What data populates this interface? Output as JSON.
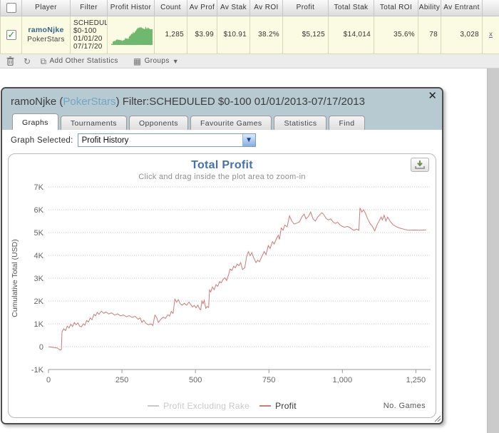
{
  "table": {
    "headers": [
      "",
      "Player",
      "Filter",
      "Profit Histor",
      "Count",
      "Av Prof",
      "Av Stak",
      "Av ROI",
      "Profit",
      "Total Stak",
      "Total ROI",
      "Ability",
      "Av Entrant",
      ""
    ],
    "row": {
      "player_name": "ramoNjke",
      "site": "PokerStars",
      "filter_lines": [
        "SCHEDUL",
        "$0-100",
        "01/01/20",
        "07/17/20"
      ],
      "count": "1,285",
      "av_profit": "$3.99",
      "av_stake": "$10.91",
      "av_roi": "38.2%",
      "profit": "$5,125",
      "total_stake": "$14,014",
      "total_roi": "35.6%",
      "ability": "78",
      "av_entrants": "3,028",
      "remove_label": "x"
    },
    "row_bg": "#fbfae2",
    "sparkline_color": "#6fb96f"
  },
  "toolbar": {
    "add_other_statistics": "Add Other Statistics",
    "groups": "Groups",
    "trash_glyph": "",
    "refresh_glyph": "↻",
    "copy_glyph": "⧉",
    "grid_glyph": "▦",
    "caret_glyph": "▼"
  },
  "dialog": {
    "title_prefix": "ramoNjke (",
    "title_site": "PokerStars",
    "title_suffix": ") Filter:SCHEDULED $0-100 01/01/2013-07/17/2013",
    "close_glyph": "✕",
    "tabs": [
      {
        "label": "Graphs",
        "active": true
      },
      {
        "label": "Tournaments",
        "active": false
      },
      {
        "label": "Opponents",
        "active": false
      },
      {
        "label": "Favourite Games",
        "active": false
      },
      {
        "label": "Statistics",
        "active": false
      },
      {
        "label": "Find",
        "active": false
      }
    ],
    "graph_selected_label": "Graph Selected:",
    "graph_selected_value": "Profit History",
    "select_arrow_glyph": "▼"
  },
  "chart_data": {
    "type": "line",
    "title": "Total Profit",
    "subtitle": "Click and drag inside the plot area to zoom-in",
    "xlabel": "No. Games",
    "ylabel": "Cumulative Total (USD)",
    "xlim": [
      0,
      1300
    ],
    "ylim": [
      -1000,
      7000
    ],
    "x_ticks": [
      0,
      250,
      500,
      750,
      1000,
      1250
    ],
    "x_tick_labels": [
      "0",
      "250",
      "500",
      "750",
      "1,000",
      "1,250"
    ],
    "y_ticks": [
      -1000,
      0,
      1000,
      2000,
      3000,
      4000,
      5000,
      6000,
      7000
    ],
    "y_tick_labels": [
      "-1K",
      "0",
      "1K",
      "2K",
      "3K",
      "4K",
      "5K",
      "6K",
      "7K"
    ],
    "grid": "dotted",
    "legend_position": "bottom",
    "series": [
      {
        "name": "Profit Excluding Rake",
        "color": "#c9c9c9",
        "visible": false,
        "points": []
      },
      {
        "name": "Profit",
        "color": "#cc7a7a",
        "visible": true,
        "points": [
          [
            0,
            0
          ],
          [
            15,
            -30
          ],
          [
            30,
            -60
          ],
          [
            40,
            -150
          ],
          [
            44,
            -120
          ],
          [
            46,
            650
          ],
          [
            52,
            780
          ],
          [
            58,
            700
          ],
          [
            64,
            900
          ],
          [
            70,
            820
          ],
          [
            76,
            980
          ],
          [
            82,
            880
          ],
          [
            88,
            1060
          ],
          [
            94,
            960
          ],
          [
            100,
            1040
          ],
          [
            106,
            900
          ],
          [
            112,
            870
          ],
          [
            118,
            1000
          ],
          [
            124,
            940
          ],
          [
            130,
            1150
          ],
          [
            136,
            1080
          ],
          [
            142,
            1260
          ],
          [
            148,
            1180
          ],
          [
            155,
            1420
          ],
          [
            160,
            1350
          ],
          [
            166,
            1500
          ],
          [
            172,
            1420
          ],
          [
            180,
            1560
          ],
          [
            188,
            1460
          ],
          [
            196,
            1520
          ],
          [
            205,
            1430
          ],
          [
            215,
            1480
          ],
          [
            225,
            1380
          ],
          [
            235,
            1440
          ],
          [
            245,
            1350
          ],
          [
            255,
            1390
          ],
          [
            265,
            1310
          ],
          [
            275,
            1360
          ],
          [
            285,
            1280
          ],
          [
            295,
            1330
          ],
          [
            305,
            1200
          ],
          [
            312,
            1260
          ],
          [
            318,
            1060
          ],
          [
            324,
            1160
          ],
          [
            332,
            1020
          ],
          [
            340,
            960
          ],
          [
            348,
            1000
          ],
          [
            355,
            930
          ],
          [
            362,
            1380
          ],
          [
            368,
            1280
          ],
          [
            374,
            1060
          ],
          [
            382,
            1200
          ],
          [
            390,
            1290
          ],
          [
            398,
            1240
          ],
          [
            406,
            1400
          ],
          [
            412,
            1340
          ],
          [
            418,
            1540
          ],
          [
            424,
            1460
          ],
          [
            430,
            2080
          ],
          [
            436,
            1950
          ],
          [
            442,
            2060
          ],
          [
            448,
            1880
          ],
          [
            455,
            1820
          ],
          [
            462,
            1900
          ],
          [
            470,
            1820
          ],
          [
            478,
            1950
          ],
          [
            484,
            1850
          ],
          [
            490,
            1740
          ],
          [
            496,
            1810
          ],
          [
            502,
            1700
          ],
          [
            508,
            1820
          ],
          [
            514,
            1660
          ],
          [
            518,
            1620
          ],
          [
            522,
            2000
          ],
          [
            526,
            1880
          ],
          [
            530,
            2030
          ],
          [
            535,
            1680
          ],
          [
            540,
            1760
          ],
          [
            545,
            1720
          ],
          [
            548,
            2480
          ],
          [
            552,
            2400
          ],
          [
            558,
            2620
          ],
          [
            564,
            2500
          ],
          [
            570,
            2720
          ],
          [
            576,
            2640
          ],
          [
            582,
            2850
          ],
          [
            588,
            2800
          ],
          [
            594,
            2950
          ],
          [
            600,
            3020
          ],
          [
            606,
            2900
          ],
          [
            612,
            3120
          ],
          [
            618,
            3400
          ],
          [
            624,
            3340
          ],
          [
            630,
            3520
          ],
          [
            636,
            3460
          ],
          [
            642,
            3620
          ],
          [
            648,
            3550
          ],
          [
            654,
            3680
          ],
          [
            660,
            3380
          ],
          [
            668,
            3460
          ],
          [
            674,
            3950
          ],
          [
            680,
            4170
          ],
          [
            686,
            3980
          ],
          [
            692,
            4120
          ],
          [
            698,
            3900
          ],
          [
            706,
            3680
          ],
          [
            712,
            3790
          ],
          [
            718,
            3720
          ],
          [
            726,
            3950
          ],
          [
            734,
            4170
          ],
          [
            740,
            4030
          ],
          [
            748,
            4430
          ],
          [
            754,
            4300
          ],
          [
            762,
            4600
          ],
          [
            768,
            4500
          ],
          [
            776,
            4750
          ],
          [
            782,
            4880
          ],
          [
            786,
            4700
          ],
          [
            792,
            5200
          ],
          [
            798,
            5100
          ],
          [
            804,
            5330
          ],
          [
            812,
            5250
          ],
          [
            820,
            5730
          ],
          [
            828,
            5500
          ],
          [
            836,
            5370
          ],
          [
            846,
            5420
          ],
          [
            854,
            5470
          ],
          [
            862,
            5680
          ],
          [
            870,
            5810
          ],
          [
            876,
            5600
          ],
          [
            884,
            5700
          ],
          [
            892,
            5900
          ],
          [
            900,
            5600
          ],
          [
            908,
            5500
          ],
          [
            916,
            5680
          ],
          [
            922,
            5760
          ],
          [
            930,
            5870
          ],
          [
            936,
            5800
          ],
          [
            944,
            5630
          ],
          [
            952,
            5550
          ],
          [
            960,
            5600
          ],
          [
            968,
            5470
          ],
          [
            976,
            5400
          ],
          [
            984,
            5450
          ],
          [
            992,
            5330
          ],
          [
            1000,
            5270
          ],
          [
            1008,
            5230
          ],
          [
            1016,
            5270
          ],
          [
            1024,
            5230
          ],
          [
            1032,
            5150
          ],
          [
            1040,
            5100
          ],
          [
            1048,
            5150
          ],
          [
            1056,
            5100
          ],
          [
            1060,
            6080
          ],
          [
            1066,
            5900
          ],
          [
            1072,
            6000
          ],
          [
            1078,
            5850
          ],
          [
            1086,
            5600
          ],
          [
            1094,
            5400
          ],
          [
            1102,
            5270
          ],
          [
            1110,
            5070
          ],
          [
            1118,
            5350
          ],
          [
            1124,
            5480
          ],
          [
            1132,
            5680
          ],
          [
            1136,
            5550
          ],
          [
            1142,
            5760
          ],
          [
            1148,
            5500
          ],
          [
            1154,
            5680
          ],
          [
            1162,
            5500
          ],
          [
            1172,
            5350
          ],
          [
            1182,
            5270
          ],
          [
            1194,
            5200
          ],
          [
            1208,
            5150
          ],
          [
            1225,
            5100
          ],
          [
            1245,
            5110
          ],
          [
            1265,
            5100
          ],
          [
            1285,
            5120
          ]
        ]
      }
    ]
  }
}
